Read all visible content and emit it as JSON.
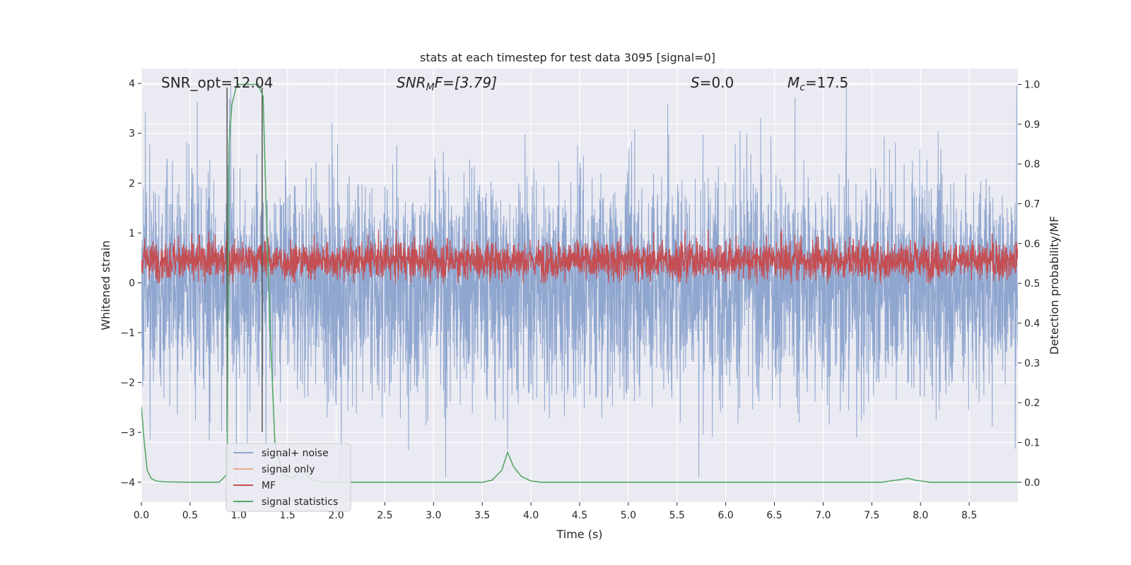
{
  "chart_data": {
    "type": "line",
    "title": "stats at each timestep for test data 3095 [signal=0]",
    "xlabel": "Time (s)",
    "ylabel_left": "Whitened strain",
    "ylabel_right": "Detection probability/MF",
    "xlim": [
      0,
      9.0
    ],
    "ylim_left": [
      -4.4,
      4.3
    ],
    "ylim_right": [
      -0.05,
      1.04
    ],
    "x_ticks": [
      "0.0",
      "0.5",
      "1.0",
      "1.5",
      "2.0",
      "2.5",
      "3.0",
      "3.5",
      "4.0",
      "4.5",
      "5.0",
      "5.5",
      "6.0",
      "6.5",
      "7.0",
      "7.5",
      "8.0",
      "8.5"
    ],
    "y_ticks_left": [
      "−4",
      "−3",
      "−2",
      "−1",
      "0",
      "1",
      "2",
      "3",
      "4"
    ],
    "y_ticks_right": [
      "0.0",
      "0.1",
      "0.2",
      "0.3",
      "0.4",
      "0.5",
      "0.6",
      "0.7",
      "0.8",
      "0.9",
      "1.0"
    ],
    "annotations": {
      "snr_opt": "SNR_opt=12.04",
      "snr_mf_main": "SNR",
      "snr_mf_sub": "M",
      "snr_mf_rest": "F=[3.79]",
      "s_main": "S",
      "s_rest": "=0.0",
      "mc_main": "M",
      "mc_sub": "c",
      "mc_rest": "=17.5"
    },
    "vertical_lines_x": [
      0.88,
      1.24
    ],
    "legend": {
      "placement": "lower-left",
      "entries": [
        {
          "label": "signal+ noise",
          "color": "#8fa6cf"
        },
        {
          "label": "signal only",
          "color": "#e8a98b"
        },
        {
          "label": "MF",
          "color": "#c44e52"
        },
        {
          "label": "signal statistics",
          "color": "#55a868"
        }
      ]
    },
    "series": [
      {
        "name": "signal+ noise",
        "axis": "left",
        "color": "#8fa6cf",
        "note_render": "dense noise trace, approx |amplitude| 1.5-4",
        "envelope_max": 3.95,
        "envelope_min": -3.9
      },
      {
        "name": "MF",
        "axis": "right",
        "color": "#c44e52",
        "band": [
          0.505,
          0.61
        ]
      },
      {
        "name": "signal statistics",
        "axis": "right",
        "color": "#55a868",
        "x": [
          0.0,
          0.03,
          0.06,
          0.1,
          0.15,
          0.25,
          0.5,
          0.8,
          0.88,
          0.9,
          0.93,
          0.97,
          1.0,
          1.05,
          1.1,
          1.2,
          1.25,
          1.28,
          1.32,
          1.37,
          1.45,
          1.55,
          1.65,
          1.75,
          1.9,
          2.2,
          3.0,
          3.5,
          3.6,
          3.7,
          3.76,
          3.82,
          3.9,
          4.0,
          4.1,
          5.0,
          6.0,
          7.0,
          7.6,
          7.8,
          7.87,
          7.95,
          8.1,
          9.0
        ],
        "y": [
          0.19,
          0.1,
          0.03,
          0.01,
          0.003,
          0.001,
          0.0,
          0.0,
          0.02,
          0.85,
          0.95,
          0.99,
          1.0,
          1.0,
          1.0,
          1.0,
          0.97,
          0.7,
          0.4,
          0.1,
          0.02,
          0.01,
          0.03,
          0.005,
          0.0,
          0.0,
          0.0,
          0.0,
          0.005,
          0.03,
          0.075,
          0.04,
          0.015,
          0.003,
          0.0,
          0.0,
          0.0,
          0.0,
          0.0,
          0.007,
          0.01,
          0.005,
          0.0,
          0.0
        ]
      }
    ]
  }
}
